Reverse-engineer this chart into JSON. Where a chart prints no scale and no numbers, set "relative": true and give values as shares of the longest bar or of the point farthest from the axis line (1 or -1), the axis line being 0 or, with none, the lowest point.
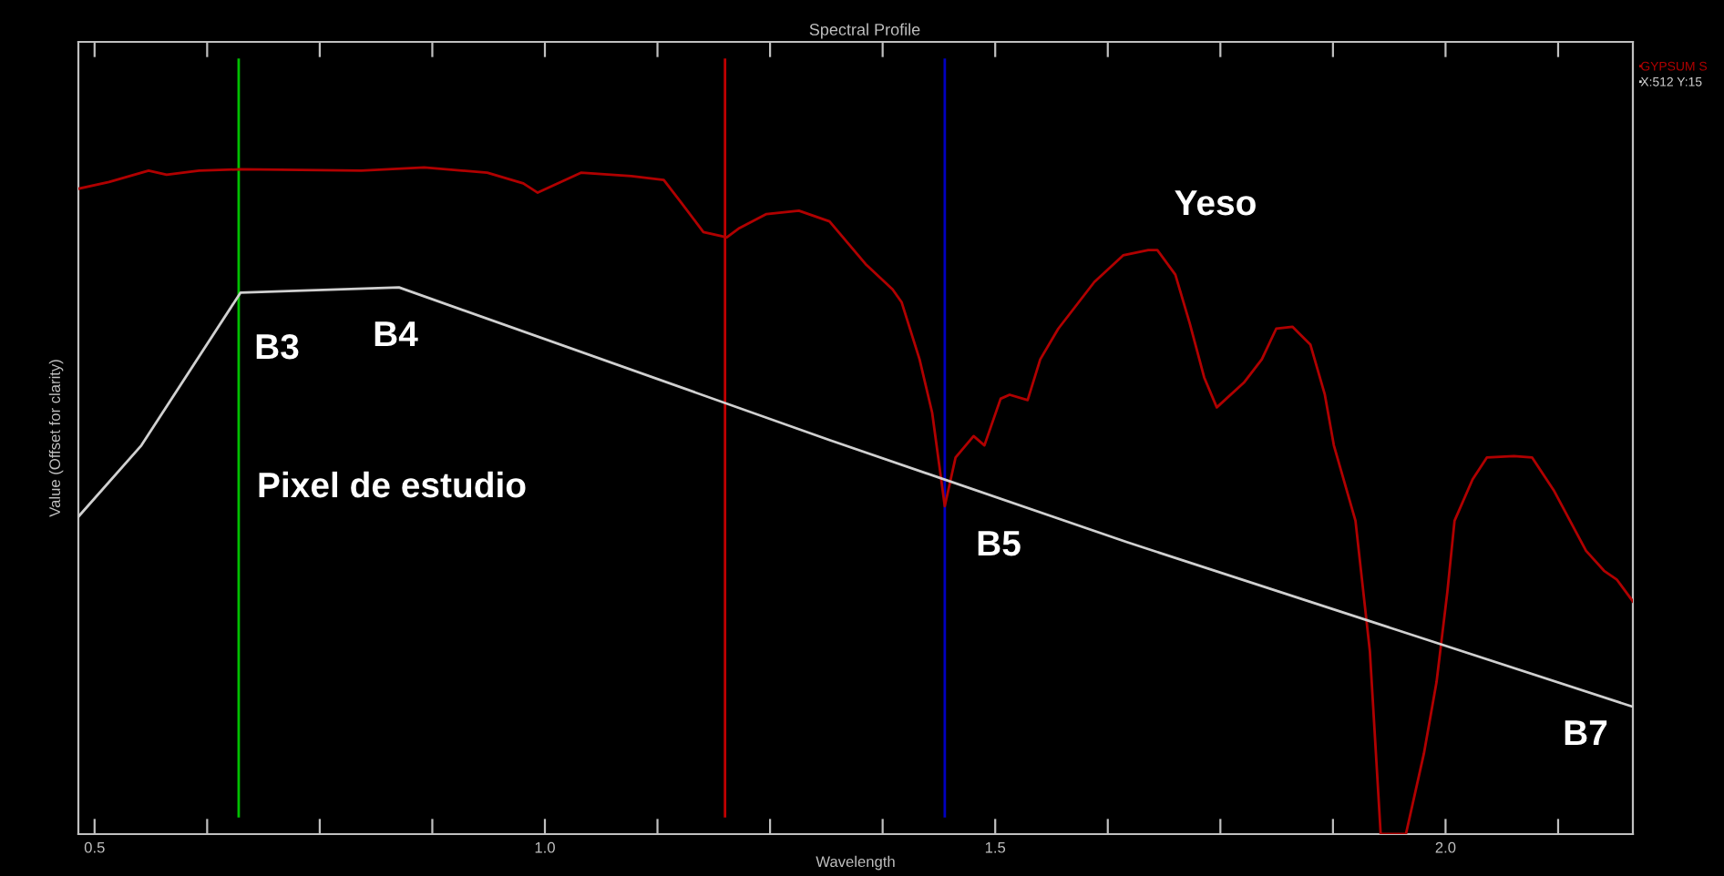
{
  "chart_data": {
    "type": "line",
    "title": "Spectral Profile",
    "xlabel": "Wavelength",
    "ylabel": "Value (Offset for clarity)",
    "relative": true,
    "xlim": [
      0.482,
      2.208
    ],
    "xticks": [
      0.5,
      {
        "value": 0.625,
        "label": null
      },
      {
        "value": 0.75,
        "label": null
      },
      {
        "value": 0.875,
        "label": null
      },
      {
        "value": 1.0,
        "label": "1.0"
      },
      {
        "value": 1.125,
        "label": null
      },
      {
        "value": 1.25,
        "label": null
      },
      {
        "value": 1.375,
        "label": null
      },
      1.5,
      {
        "value": 1.625,
        "label": null
      },
      {
        "value": 1.75,
        "label": null
      },
      {
        "value": 1.875,
        "label": null
      },
      {
        "value": 2.0,
        "label": "2.0"
      },
      {
        "value": 2.125,
        "label": null
      }
    ],
    "grid": false,
    "legend": "top right",
    "marker": "none",
    "line_style": "solid",
    "series": [
      {
        "name": "GYPSUM S",
        "color": "#b00000",
        "x": [
          0.482,
          0.516,
          0.56,
          0.58,
          0.616,
          0.662,
          0.796,
          0.866,
          0.936,
          0.976,
          0.992,
          1.04,
          1.096,
          1.132,
          1.152,
          1.176,
          1.202,
          1.216,
          1.246,
          1.282,
          1.316,
          1.356,
          1.386,
          1.396,
          1.416,
          1.43,
          1.444,
          1.456,
          1.476,
          1.488,
          1.506,
          1.516,
          1.536,
          1.55,
          1.57,
          1.61,
          1.642,
          1.67,
          1.68,
          1.7,
          1.716,
          1.732,
          1.746,
          1.776,
          1.796,
          1.812,
          1.83,
          1.85,
          1.866,
          1.876,
          1.9,
          1.916,
          1.928,
          1.956,
          1.976,
          1.99,
          2.002,
          2.01,
          2.03,
          2.046,
          2.076,
          2.096,
          2.12,
          2.156,
          2.176,
          2.19,
          2.208
        ],
        "values": [
          0.968,
          0.978,
          0.995,
          0.989,
          0.995,
          0.997,
          0.995,
          1.0,
          0.992,
          0.976,
          0.962,
          0.992,
          0.987,
          0.981,
          0.946,
          0.903,
          0.895,
          0.909,
          0.93,
          0.935,
          0.919,
          0.855,
          0.817,
          0.798,
          0.712,
          0.632,
          0.492,
          0.565,
          0.597,
          0.583,
          0.653,
          0.659,
          0.651,
          0.712,
          0.758,
          0.828,
          0.868,
          0.876,
          0.876,
          0.839,
          0.766,
          0.685,
          0.64,
          0.677,
          0.712,
          0.758,
          0.761,
          0.734,
          0.659,
          0.583,
          0.47,
          0.274,
          0.0,
          0.0,
          0.121,
          0.228,
          0.363,
          0.47,
          0.532,
          0.565,
          0.567,
          0.565,
          0.516,
          0.425,
          0.395,
          0.382,
          0.349
        ]
      },
      {
        "name": "X:512 Y:15",
        "color": "#d0d0d0",
        "x": [
          0.482,
          0.552,
          0.662,
          0.838,
          1.316,
          1.646,
          2.208
        ],
        "values": [
          0.476,
          0.583,
          0.812,
          0.82,
          0.591,
          0.438,
          0.191
        ]
      }
    ],
    "ref_lines": [
      {
        "axis": "x",
        "value": 0.66,
        "color": "#00c000"
      },
      {
        "axis": "x",
        "value": 1.2,
        "color": "#c00000"
      },
      {
        "axis": "x",
        "value": 1.444,
        "color": "#0000c0"
      }
    ],
    "annotations": [
      "Yeso",
      "Pixel de estudio",
      "B3",
      "B4",
      "B5",
      "B7"
    ]
  }
}
